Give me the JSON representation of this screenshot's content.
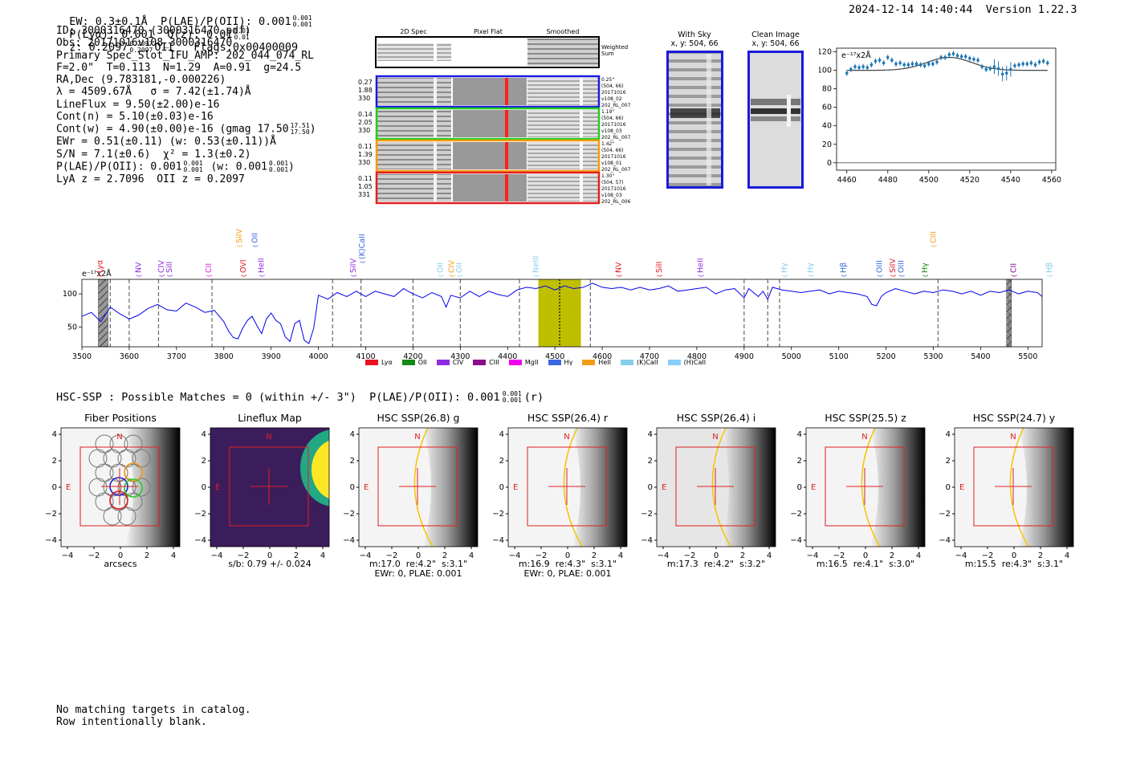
{
  "header": {
    "left": "EW: 0.3±0.1Å  P(LAE)/P(OII): 0.001",
    "plae_sup": "0.001",
    "plae_sub": "0.001",
    "plya": "P(Lyα): 0.001",
    "qz": "Q(z): 0.01",
    "qz_sup": "0.01",
    "qz_sub": "0.01",
    "z": "z: 0.2097",
    "z_sup": "0.2097",
    "z_sub": "0.2097",
    "oii": "OII",
    "flags": "Flags:0x00400009",
    "datetime": "2024-12-14 14:40:44",
    "version": "Version 1.22.3"
  },
  "info": [
    "ID: 3000316470 (3000316470.pdf)",
    "Obs: 20171016v108_3000316470",
    "Primary Spec_Slot_IFU_AMP: 202_044_074_RL",
    "F=2.0\"  T=0.113  N=1.29  A=0.91  g=24.5",
    "RA,Dec (9.783181,-0.000226)",
    "λ = 4509.67Å   σ = 7.42(±1.74)Å",
    "LineFlux = 9.50(±2.00)e-16",
    "Cont(n) = 5.10(±0.03)e-16",
    "Cont(w) = 4.90(±0.00)e-16 (gmag 17.50",
    "EWr = 0.51(±0.11) (w: 0.53(±0.11))Å",
    "S/N = 7.1(±0.6)  χ² = 1.3(±0.2)",
    "P(LAE)/P(OII): 0.001",
    "LyA z = 2.7096  OII z = 0.2097"
  ],
  "info_gmag_sup": "17.51",
  "info_gmag_sub": "17.50",
  "info_plae_tail": "(w: 0.001",
  "cutouts": {
    "col_titles": [
      "2D Spec",
      "Pixel Flat",
      "Smoothed"
    ],
    "weighted_label": "Weighted Sum",
    "rows": [
      {
        "left": [
          "0.27",
          "1.88",
          "330"
        ],
        "right": [
          "0.25\"",
          "(504, 66)",
          "20171016",
          "v108_02",
          "202_RL_007"
        ],
        "color": "#1a1adb"
      },
      {
        "left": [
          "0.14",
          "2.05",
          "330"
        ],
        "right": [
          "1.19\"",
          "(504, 66)",
          "20171016",
          "v108_03",
          "202_RL_007"
        ],
        "color": "#22cc22"
      },
      {
        "left": [
          "0.11",
          "1.39",
          "330"
        ],
        "right": [
          "1.42\"",
          "(504, 66)",
          "20171016",
          "v108_01",
          "202_RL_007"
        ],
        "color": "#f39c12"
      },
      {
        "left": [
          "0.11",
          "1.05",
          "331"
        ],
        "right": [
          "1.30\"",
          "(504, 57)",
          "20171016",
          "v108_03",
          "202_RL_006"
        ],
        "color": "#e02020"
      }
    ],
    "with_sky": [
      "With Sky",
      "x, y: 504, 66"
    ],
    "clean": [
      "Clean Image",
      "x, y: 504, 66"
    ]
  },
  "zoom_chart": {
    "unit": "e⁻¹⁷x2Å",
    "xlim": [
      4455,
      4562
    ],
    "ylim": [
      -8,
      124
    ],
    "xticks": [
      4460,
      4480,
      4500,
      4520,
      4540,
      4560
    ],
    "yticks": [
      0,
      20,
      40,
      60,
      80,
      100,
      120
    ],
    "points_x": [
      4460,
      4462,
      4464,
      4466,
      4468,
      4470,
      4472,
      4474,
      4476,
      4478,
      4480,
      4482,
      4484,
      4486,
      4488,
      4490,
      4492,
      4494,
      4496,
      4498,
      4500,
      4502,
      4504,
      4506,
      4508,
      4510,
      4512,
      4514,
      4516,
      4518,
      4520,
      4522,
      4524,
      4526,
      4528,
      4530,
      4532,
      4534,
      4536,
      4538,
      4540,
      4542,
      4544,
      4546,
      4548,
      4550,
      4552,
      4554,
      4556,
      4558
    ],
    "points_y": [
      97,
      101,
      104,
      103,
      104,
      103,
      106,
      110,
      111,
      108,
      114,
      111,
      107,
      108,
      106,
      106,
      107,
      107,
      106,
      105,
      107,
      107,
      109,
      114,
      114,
      117,
      118,
      116,
      115,
      115,
      113,
      112,
      111,
      104,
      101,
      102,
      104,
      102,
      96,
      97,
      101,
      105,
      106,
      107,
      107,
      108,
      106,
      109,
      110,
      108
    ]
  },
  "legend": [
    {
      "label": "Lyα",
      "color": "#e8131f"
    },
    {
      "label": "OII",
      "color": "#138a13"
    },
    {
      "label": "CIV",
      "color": "#8e2be2"
    },
    {
      "label": "CIII",
      "color": "#8b0a8b"
    },
    {
      "label": "MgII",
      "color": "#f000f0"
    },
    {
      "label": "Hγ",
      "color": "#3b68e0"
    },
    {
      "label": "HeII",
      "color": "#f39c12"
    },
    {
      "label": "(K)CaII",
      "color": "#87ceeb"
    },
    {
      "label": "(H)CaII",
      "color": "#87cefa"
    }
  ],
  "chart_data": {
    "type": "line",
    "title": "",
    "ylabel": "e⁻¹⁷x2Å",
    "xlim": [
      3500,
      5530
    ],
    "ylim": [
      20,
      122
    ],
    "xticks": [
      3500,
      3600,
      3700,
      3800,
      3900,
      4000,
      4100,
      4200,
      4300,
      4400,
      4500,
      4600,
      4700,
      4800,
      4900,
      5000,
      5100,
      5200,
      5300,
      5400,
      5500
    ],
    "yticks": [
      50,
      100
    ],
    "series": [
      {
        "name": "spectrum",
        "color": "#0000ee",
        "x": [
          3500,
          3520,
          3540,
          3560,
          3580,
          3600,
          3620,
          3640,
          3660,
          3680,
          3700,
          3720,
          3740,
          3760,
          3780,
          3800,
          3810,
          3820,
          3830,
          3840,
          3850,
          3860,
          3870,
          3880,
          3890,
          3900,
          3910,
          3920,
          3930,
          3940,
          3950,
          3960,
          3970,
          3980,
          3990,
          4000,
          4020,
          4040,
          4060,
          4080,
          4100,
          4120,
          4140,
          4160,
          4180,
          4200,
          4220,
          4240,
          4260,
          4270,
          4280,
          4300,
          4320,
          4340,
          4360,
          4380,
          4400,
          4420,
          4440,
          4460,
          4480,
          4500,
          4520,
          4540,
          4560,
          4580,
          4600,
          4620,
          4640,
          4660,
          4680,
          4700,
          4720,
          4740,
          4760,
          4780,
          4800,
          4820,
          4840,
          4860,
          4880,
          4900,
          4910,
          4920,
          4930,
          4940,
          4950,
          4960,
          4980,
          5000,
          5020,
          5040,
          5060,
          5080,
          5100,
          5120,
          5140,
          5160,
          5170,
          5180,
          5190,
          5200,
          5220,
          5240,
          5260,
          5280,
          5300,
          5320,
          5340,
          5360,
          5380,
          5400,
          5420,
          5440,
          5460,
          5480,
          5500,
          5520,
          5530
        ],
        "y": [
          66,
          72,
          58,
          80,
          70,
          62,
          68,
          78,
          84,
          76,
          74,
          86,
          80,
          72,
          75,
          58,
          44,
          34,
          32,
          48,
          60,
          66,
          52,
          40,
          62,
          71,
          60,
          55,
          35,
          28,
          55,
          60,
          30,
          25,
          48,
          98,
          92,
          102,
          96,
          104,
          96,
          104,
          100,
          96,
          108,
          100,
          94,
          102,
          96,
          80,
          98,
          94,
          104,
          96,
          104,
          99,
          96,
          106,
          110,
          108,
          112,
          106,
          112,
          108,
          110,
          116,
          110,
          108,
          110,
          106,
          110,
          106,
          108,
          112,
          104,
          106,
          108,
          110,
          100,
          106,
          108,
          94,
          108,
          102,
          96,
          104,
          92,
          110,
          106,
          104,
          102,
          104,
          106,
          100,
          104,
          102,
          100,
          96,
          84,
          82,
          96,
          102,
          108,
          104,
          100,
          104,
          102,
          106,
          104,
          100,
          104,
          98,
          104,
          102,
          106,
          100,
          104,
          102,
          96
        ]
      }
    ],
    "emission_x": 4509.67,
    "highlight_range": [
      4465,
      4555
    ],
    "dashed_lines": [
      3560,
      3600,
      3662,
      3775,
      4030,
      4090,
      4200,
      4300,
      4425,
      4510,
      4575,
      4900,
      4950,
      4975,
      5310,
      5460
    ],
    "hatched_bands": [
      [
        3535,
        3555
      ],
      [
        5455,
        5465
      ]
    ],
    "line_labels": [
      {
        "label": "Lyα",
        "x": 3538,
        "color": "#e8131f",
        "tier": 0
      },
      {
        "label": "NV",
        "x": 3620,
        "color": "#8e2be2",
        "tier": 0
      },
      {
        "label": "CIV",
        "x": 3668,
        "color": "#8e2be2",
        "tier": 0
      },
      {
        "label": "SiII",
        "x": 3685,
        "color": "#8e2be2",
        "tier": 0
      },
      {
        "label": "CII",
        "x": 3768,
        "color": "#e020e0",
        "tier": 0
      },
      {
        "label": "SiIV",
        "x": 3833,
        "color": "#f39c12",
        "tier": 2
      },
      {
        "label": "OVI",
        "x": 3841,
        "color": "#e8131f",
        "tier": 0
      },
      {
        "label": "OII",
        "x": 3866,
        "color": "#3b68e0",
        "tier": 2
      },
      {
        "label": "HeII",
        "x": 3879,
        "color": "#8e2be2",
        "tier": 0
      },
      {
        "label": "SiIV",
        "x": 4074,
        "color": "#8e2be2",
        "tier": 0
      },
      {
        "label": "(K)CaII",
        "x": 4092,
        "color": "#3b68e0",
        "tier": 1
      },
      {
        "label": "OII",
        "x": 4258,
        "color": "#87ceeb",
        "tier": 0
      },
      {
        "label": "CIV",
        "x": 4282,
        "color": "#f39c12",
        "tier": 0
      },
      {
        "label": "OII",
        "x": 4298,
        "color": "#87ceeb",
        "tier": 0
      },
      {
        "label": "NeIII",
        "x": 4460,
        "color": "#87ceeb",
        "tier": 0
      },
      {
        "label": "NV",
        "x": 4635,
        "color": "#e8131f",
        "tier": 0
      },
      {
        "label": "SiII",
        "x": 4720,
        "color": "#e8131f",
        "tier": 0
      },
      {
        "label": "HeII",
        "x": 4808,
        "color": "#8e2be2",
        "tier": 0
      },
      {
        "label": "Hγ",
        "x": 4985,
        "color": "#87ceeb",
        "tier": 0
      },
      {
        "label": "Hγ",
        "x": 5040,
        "color": "#87ceeb",
        "tier": 0
      },
      {
        "label": "Hβ",
        "x": 5110,
        "color": "#3b68e0",
        "tier": 0
      },
      {
        "label": "OIII",
        "x": 5186,
        "color": "#3b68e0",
        "tier": 0
      },
      {
        "label": "SiIV",
        "x": 5214,
        "color": "#e8131f",
        "tier": 0
      },
      {
        "label": "OIII",
        "x": 5232,
        "color": "#3b68e0",
        "tier": 0
      },
      {
        "label": "Hγ",
        "x": 5282,
        "color": "#138a13",
        "tier": 0
      },
      {
        "label": "CIII",
        "x": 5300,
        "color": "#f39c12",
        "tier": 2
      },
      {
        "label": "CII",
        "x": 5470,
        "color": "#8b0a8b",
        "tier": 0
      },
      {
        "label": "Hβ",
        "x": 5545,
        "color": "#87ceeb",
        "tier": 0
      }
    ]
  },
  "hsc": {
    "line": "HSC-SSP : Possible Matches = 0 (within +/- 3\")  P(LAE)/P(OII): 0.001",
    "sup": "0.001",
    "sub": "0.001",
    "tail": "(r)",
    "panels": [
      {
        "title": "Fiber Positions",
        "caption": "arcsecs"
      },
      {
        "title": "Lineflux Map",
        "caption": "s/b: 0.79 +/- 0.024"
      },
      {
        "title": "HSC SSP(26.8) g",
        "caption": "m:17.0  re:4.2\"  s:3.1\"",
        "caption2": "EWr: 0, PLAE: 0.001"
      },
      {
        "title": "HSC SSP(26.4) r",
        "caption": "m:16.9  re:4.3\"  s:3.1\"",
        "caption2": "EWr: 0, PLAE: 0.001"
      },
      {
        "title": "HSC SSP(26.4) i",
        "caption": "m:17.3  re:4.2\"  s:3.2\""
      },
      {
        "title": "HSC SSP(25.5) z",
        "caption": "m:16.5  re:4.1\"  s:3.0\""
      },
      {
        "title": "HSC SSP(24.7) y",
        "caption": "m:15.5  re:4.3\"  s:3.1\""
      }
    ],
    "ticks": [
      "−4",
      "−2",
      "0",
      "2",
      "4"
    ],
    "north": "N",
    "east": "E"
  },
  "footer": [
    "No matching targets in catalog.",
    "Row intentionally blank."
  ]
}
